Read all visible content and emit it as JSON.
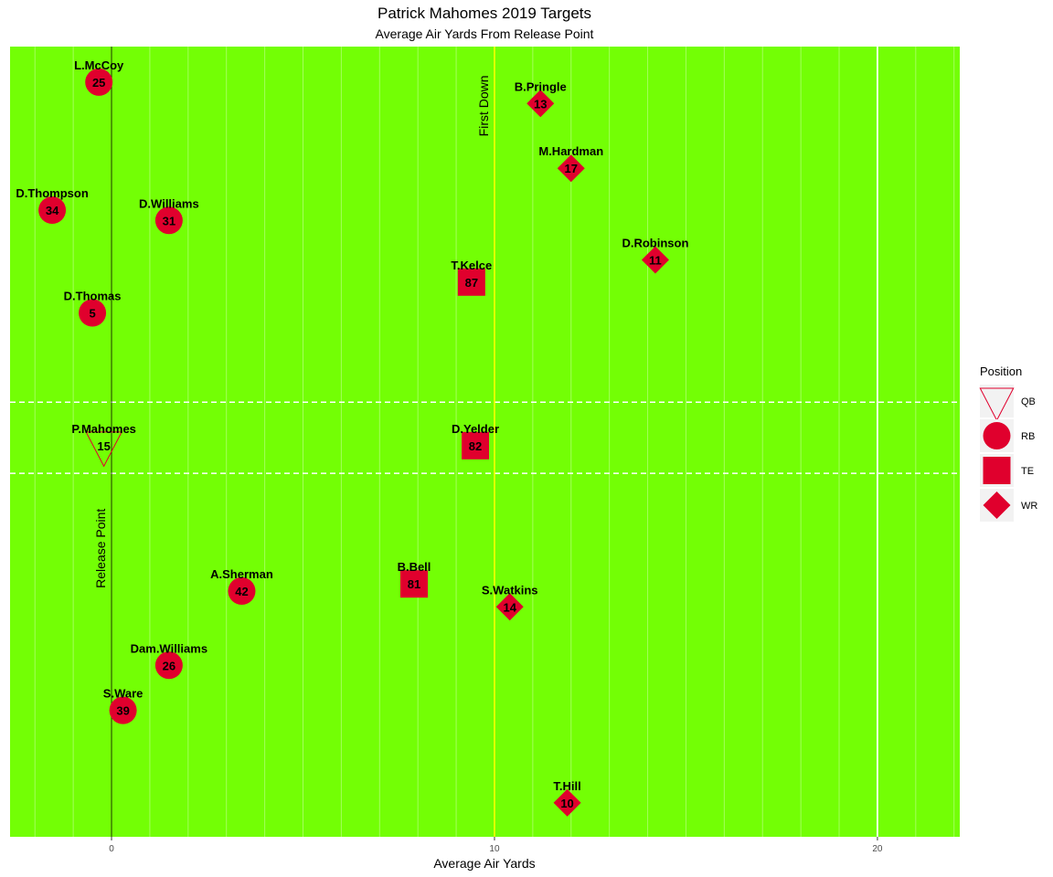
{
  "chart_data": {
    "type": "scatter",
    "title": "Patrick Mahomes 2019 Targets",
    "subtitle": "Average Air Yards From Release Point",
    "xlabel": "Average Air Yards",
    "ylabel": "",
    "xlim": [
      -2.65,
      22.15
    ],
    "x_ticks": [
      0,
      10,
      20
    ],
    "x_tick_labels": [
      "0",
      "10",
      "20"
    ],
    "ylim": [
      0,
      100
    ],
    "grid": false,
    "field_color": "#73FF05",
    "marker_color": "#E0002D",
    "reference_lines": [
      {
        "x": 0,
        "label": "Release Point"
      },
      {
        "x": 10,
        "label": "First Down"
      }
    ],
    "legend": {
      "title": "Position",
      "placement": "right",
      "entries": [
        {
          "label": "QB",
          "shape": "triangle-down-open"
        },
        {
          "label": "RB",
          "shape": "circle"
        },
        {
          "label": "TE",
          "shape": "square"
        },
        {
          "label": "WR",
          "shape": "diamond"
        }
      ]
    },
    "points": [
      {
        "name": "L.McCoy",
        "number": "25",
        "position": "RB",
        "x": -0.33,
        "y": 95.5
      },
      {
        "name": "B.Pringle",
        "number": "13",
        "position": "WR",
        "x": 11.2,
        "y": 92.8
      },
      {
        "name": "M.Hardman",
        "number": "17",
        "position": "WR",
        "x": 12.0,
        "y": 84.6
      },
      {
        "name": "D.Thompson",
        "number": "34",
        "position": "RB",
        "x": -1.55,
        "y": 79.3
      },
      {
        "name": "D.Williams",
        "number": "31",
        "position": "RB",
        "x": 1.5,
        "y": 78.0
      },
      {
        "name": "D.Robinson",
        "number": "11",
        "position": "WR",
        "x": 14.2,
        "y": 73.0
      },
      {
        "name": "T.Kelce",
        "number": "87",
        "position": "TE",
        "x": 9.4,
        "y": 70.2
      },
      {
        "name": "D.Thomas",
        "number": "5",
        "position": "RB",
        "x": -0.5,
        "y": 66.3
      },
      {
        "name": "P.Mahomes",
        "number": "15",
        "position": "QB",
        "x": -0.2,
        "y": 49.5
      },
      {
        "name": "D.Yelder",
        "number": "82",
        "position": "TE",
        "x": 9.5,
        "y": 49.5
      },
      {
        "name": "A.Sherman",
        "number": "42",
        "position": "RB",
        "x": 3.4,
        "y": 31.1
      },
      {
        "name": "B.Bell",
        "number": "81",
        "position": "TE",
        "x": 7.9,
        "y": 32.0
      },
      {
        "name": "S.Watkins",
        "number": "14",
        "position": "WR",
        "x": 10.4,
        "y": 29.1
      },
      {
        "name": "Dam.Williams",
        "number": "26",
        "position": "RB",
        "x": 1.5,
        "y": 21.7
      },
      {
        "name": "S.Ware",
        "number": "39",
        "position": "RB",
        "x": 0.3,
        "y": 16.0
      },
      {
        "name": "T.Hill",
        "number": "10",
        "position": "WR",
        "x": 11.9,
        "y": 4.3
      }
    ]
  }
}
